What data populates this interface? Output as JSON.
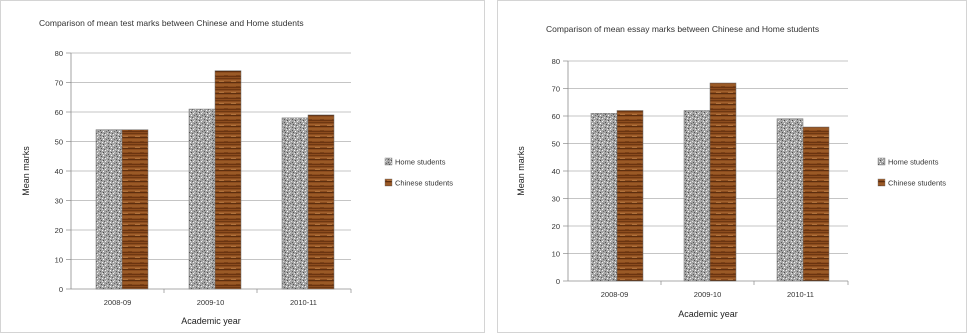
{
  "chart_data": [
    {
      "type": "bar",
      "title": "Comparison of mean test marks between Chinese and Home students",
      "xlabel": "Academic year",
      "ylabel": "Mean marks",
      "categories": [
        "2008-09",
        "2009-10",
        "2010-11"
      ],
      "series": [
        {
          "name": "Home students",
          "values": [
            54,
            61,
            58
          ],
          "fill": "speckled-grey",
          "color": "#9a9a9a"
        },
        {
          "name": "Chinese students",
          "values": [
            54,
            74,
            59
          ],
          "fill": "brown-wood",
          "color": "#8a4a1c"
        }
      ],
      "ylim": [
        0,
        80
      ],
      "yticks": [
        "0",
        "10",
        "20",
        "30",
        "40",
        "50",
        "60",
        "70",
        "80"
      ],
      "grid": true,
      "legend": "right"
    },
    {
      "type": "bar",
      "title": "Comparison of mean essay marks between Chinese and Home students",
      "xlabel": "Academic year",
      "ylabel": "Mean marks",
      "categories": [
        "2008-09",
        "2009-10",
        "2010-11"
      ],
      "series": [
        {
          "name": "Home students",
          "values": [
            61,
            62,
            59
          ],
          "fill": "speckled-grey",
          "color": "#9a9a9a"
        },
        {
          "name": "Chinese students",
          "values": [
            62,
            72,
            56
          ],
          "fill": "brown-wood",
          "color": "#8a4a1c"
        }
      ],
      "ylim": [
        0,
        80
      ],
      "yticks": [
        "0",
        "10",
        "20",
        "30",
        "40",
        "50",
        "60",
        "70",
        "80"
      ],
      "grid": true,
      "legend": "right"
    }
  ]
}
